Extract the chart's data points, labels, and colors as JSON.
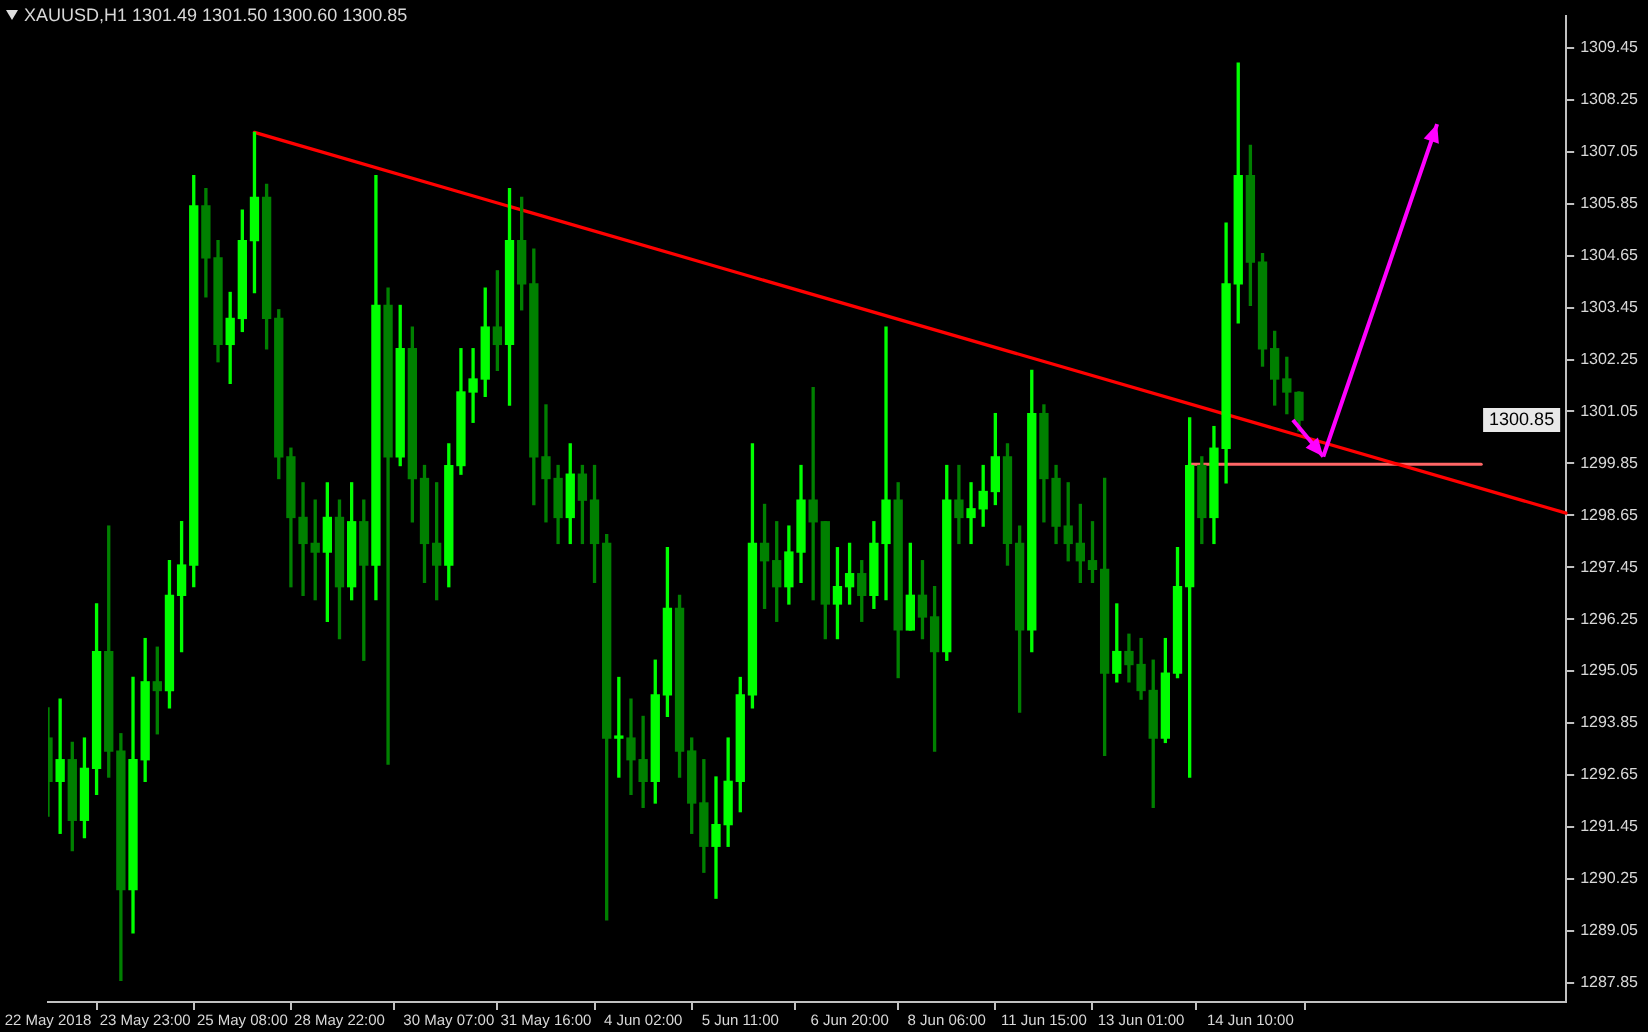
{
  "chart_data": {
    "type": "candlestick",
    "title": "XAUUSD,H1 1301.49 1301.50 1300.60 1300.85",
    "categories": [
      "22 May 2018",
      null,
      null,
      null,
      null,
      null,
      null,
      null,
      "23 May 23:00",
      null,
      null,
      null,
      null,
      null,
      null,
      null,
      "25 May 08:00",
      null,
      null,
      null,
      null,
      null,
      null,
      null,
      "28 May 22:00",
      null,
      null,
      null,
      null,
      null,
      null,
      null,
      null,
      "30 May 07:00",
      null,
      null,
      null,
      null,
      null,
      null,
      null,
      "31 May 16:00",
      null,
      null,
      null,
      null,
      null,
      null,
      null,
      "4 Jun 02:00",
      null,
      null,
      null,
      null,
      null,
      null,
      null,
      "5 Jun 11:00",
      null,
      null,
      null,
      null,
      null,
      null,
      null,
      null,
      "6 Jun 20:00",
      null,
      null,
      null,
      null,
      null,
      null,
      null,
      "8 Jun 06:00",
      null,
      null,
      null,
      null,
      null,
      null,
      null,
      "11 Jun 15:00",
      null,
      null,
      null,
      null,
      null,
      null,
      null,
      "13 Jun 01:00",
      null,
      null,
      null,
      null,
      null,
      null,
      null,
      null,
      "14 Jun 10:00",
      null,
      null,
      null,
      null,
      null,
      null,
      null,
      null,
      null,
      null,
      null,
      null,
      null,
      null,
      null,
      null,
      null,
      null,
      null,
      null,
      null,
      null,
      null,
      null,
      null,
      null
    ],
    "ylim": [
      1287.4,
      1310.2
    ],
    "yticks": [
      1309.45,
      1308.25,
      1307.05,
      1305.85,
      1304.65,
      1303.45,
      1302.25,
      1301.05,
      1299.85,
      1298.65,
      1297.45,
      1296.25,
      1295.05,
      1293.85,
      1292.65,
      1291.45,
      1290.25,
      1289.05,
      1287.85
    ],
    "annotations": [
      {
        "text": "1300.85",
        "y": 1300.85
      }
    ],
    "series": [
      {
        "color": "#00ff00",
        "colors": [
          "#008000",
          "#00ff00",
          "#008000",
          "#00ff00",
          "#00ff00",
          "#008000",
          "#008000",
          "#00ff00",
          "#00ff00",
          "#008000",
          "#00ff00",
          "#00ff00",
          "#00ff00",
          "#008000",
          "#008000",
          "#00ff00",
          "#00ff00",
          "#00ff00",
          "#008000",
          "#008000",
          "#008000",
          "#008000",
          "#008000",
          "#00ff00",
          "#008000",
          "#00ff00",
          "#008000",
          "#00ff00",
          "#008000",
          "#00ff00",
          "#008000",
          "#008000",
          "#008000",
          "#00ff00",
          "#00ff00",
          "#00ff00",
          "#00ff00",
          "#008000",
          "#00ff00",
          "#008000",
          "#008000",
          "#008000",
          "#008000",
          "#00ff00",
          "#008000",
          "#008000",
          "#008000",
          "#00ff00",
          "#008000",
          "#008000",
          "#00ff00",
          "#00ff00",
          "#008000",
          "#008000",
          "#008000",
          "#00ff00",
          "#00ff00",
          "#00ff00",
          "#00ff00",
          "#008000",
          "#008000",
          "#00ff00",
          "#00ff00",
          "#008000",
          "#008000",
          "#00ff00",
          "#00ff00",
          "#008000",
          "#00ff00",
          "#00ff00",
          "#008000",
          "#00ff00",
          "#008000",
          "#008000",
          "#00ff00",
          "#008000",
          "#00ff00",
          "#00ff00",
          "#00ff00",
          "#008000",
          "#008000",
          "#00ff00",
          "#008000",
          "#008000",
          "#008000",
          "#008000",
          "#008000",
          "#008000",
          "#00ff00",
          "#008000",
          "#008000",
          "#008000",
          "#00ff00",
          "#00ff00",
          "#00ff00",
          "#008000",
          "#00ff00",
          "#00ff00",
          "#00ff00",
          "#008000",
          "#008000",
          "#008000",
          "#008000",
          "#008000",
          null,
          null,
          null,
          null,
          null,
          null,
          null,
          null,
          null,
          null,
          null,
          null,
          null,
          null,
          null,
          null,
          null,
          null,
          null,
          null,
          null,
          null
        ],
        "ohlc": [
          [
            1293.5,
            1294.2,
            1291.7,
            1292.5
          ],
          [
            1292.5,
            1294.4,
            1291.3,
            1293.0
          ],
          [
            1293.0,
            1293.4,
            1290.9,
            1291.6
          ],
          [
            1291.6,
            1293.5,
            1291.2,
            1292.8
          ],
          [
            1292.8,
            1296.6,
            1292.2,
            1295.5
          ],
          [
            1295.5,
            1298.4,
            1292.6,
            1293.2
          ],
          [
            1293.2,
            1293.6,
            1287.9,
            1290.0
          ],
          [
            1290.0,
            1294.9,
            1289.0,
            1293.0
          ],
          [
            1293.0,
            1295.8,
            1292.5,
            1294.8
          ],
          [
            1294.8,
            1295.6,
            1293.6,
            1294.6
          ],
          [
            1294.6,
            1297.6,
            1294.2,
            1296.8
          ],
          [
            1296.8,
            1298.5,
            1295.5,
            1297.5
          ],
          [
            1297.5,
            1306.5,
            1297.0,
            1305.8
          ],
          [
            1305.8,
            1306.2,
            1303.7,
            1304.6
          ],
          [
            1304.6,
            1305.0,
            1302.2,
            1302.6
          ],
          [
            1302.6,
            1303.8,
            1301.7,
            1303.2
          ],
          [
            1303.2,
            1305.7,
            1302.9,
            1305.0
          ],
          [
            1305.0,
            1307.5,
            1303.8,
            1306.0
          ],
          [
            1306.0,
            1306.3,
            1302.5,
            1303.2
          ],
          [
            1303.2,
            1303.4,
            1299.5,
            1300.0
          ],
          [
            1300.0,
            1300.2,
            1297.0,
            1298.6
          ],
          [
            1298.6,
            1299.4,
            1296.8,
            1298.0
          ],
          [
            1298.0,
            1299.0,
            1296.7,
            1297.8
          ],
          [
            1297.8,
            1299.4,
            1296.2,
            1298.6
          ],
          [
            1298.6,
            1299.0,
            1295.8,
            1297.0
          ],
          [
            1297.0,
            1299.4,
            1296.7,
            1298.5
          ],
          [
            1298.5,
            1299.0,
            1295.3,
            1297.5
          ],
          [
            1297.5,
            1306.5,
            1296.7,
            1303.5
          ],
          [
            1303.5,
            1303.9,
            1292.9,
            1300.0
          ],
          [
            1300.0,
            1303.5,
            1299.8,
            1302.5
          ],
          [
            1302.5,
            1303.0,
            1298.5,
            1299.5
          ],
          [
            1299.5,
            1299.8,
            1297.1,
            1298.0
          ],
          [
            1298.0,
            1299.4,
            1296.7,
            1297.5
          ],
          [
            1297.5,
            1300.3,
            1297.0,
            1299.8
          ],
          [
            1299.8,
            1302.5,
            1299.6,
            1301.5
          ],
          [
            1301.5,
            1302.5,
            1300.8,
            1301.8
          ],
          [
            1301.8,
            1303.9,
            1301.4,
            1303.0
          ],
          [
            1303.0,
            1304.3,
            1302.0,
            1302.6
          ],
          [
            1302.6,
            1306.2,
            1301.2,
            1305.0
          ],
          [
            1305.0,
            1306.0,
            1303.4,
            1304.0
          ],
          [
            1304.0,
            1304.8,
            1298.9,
            1300.0
          ],
          [
            1300.0,
            1301.2,
            1298.5,
            1299.5
          ],
          [
            1299.5,
            1299.8,
            1298.0,
            1298.6
          ],
          [
            1298.6,
            1300.3,
            1298.0,
            1299.6
          ],
          [
            1299.6,
            1299.8,
            1298.0,
            1299.0
          ],
          [
            1299.0,
            1299.8,
            1297.1,
            1298.0
          ],
          [
            1298.0,
            1298.2,
            1289.3,
            1293.5
          ],
          [
            1293.5,
            1294.9,
            1292.6,
            1293.5
          ],
          [
            1293.5,
            1294.4,
            1292.2,
            1293.0
          ],
          [
            1293.0,
            1294.0,
            1291.9,
            1292.5
          ],
          [
            1292.5,
            1295.3,
            1292.0,
            1294.5
          ],
          [
            1294.5,
            1297.9,
            1294.0,
            1296.5
          ],
          [
            1296.5,
            1296.8,
            1292.6,
            1293.2
          ],
          [
            1293.2,
            1293.5,
            1291.3,
            1292.0
          ],
          [
            1292.0,
            1293.0,
            1290.4,
            1291.0
          ],
          [
            1291.0,
            1292.6,
            1289.8,
            1291.5
          ],
          [
            1291.5,
            1293.5,
            1291.0,
            1292.5
          ],
          [
            1292.5,
            1294.9,
            1291.8,
            1294.5
          ],
          [
            1294.5,
            1300.3,
            1294.2,
            1298.0
          ],
          [
            1298.0,
            1298.9,
            1296.5,
            1297.6
          ],
          [
            1297.6,
            1298.5,
            1296.2,
            1297.0
          ],
          [
            1297.0,
            1298.4,
            1296.6,
            1297.8
          ],
          [
            1297.8,
            1299.8,
            1297.1,
            1299.0
          ],
          [
            1299.0,
            1301.6,
            1296.7,
            1298.5
          ],
          [
            1298.5,
            1298.5,
            1295.8,
            1296.6
          ],
          [
            1296.6,
            1297.9,
            1295.8,
            1297.0
          ],
          [
            1297.0,
            1298.0,
            1296.6,
            1297.3
          ],
          [
            1297.3,
            1297.6,
            1296.2,
            1296.8
          ],
          [
            1296.8,
            1298.5,
            1296.5,
            1298.0
          ],
          [
            1298.0,
            1303.0,
            1296.7,
            1299.0
          ],
          [
            1299.0,
            1299.4,
            1294.9,
            1296.0
          ],
          [
            1296.0,
            1298.0,
            1296.0,
            1296.8
          ],
          [
            1296.8,
            1297.6,
            1295.8,
            1296.3
          ],
          [
            1296.3,
            1297.0,
            1293.2,
            1295.5
          ],
          [
            1295.5,
            1299.8,
            1295.3,
            1299.0
          ],
          [
            1299.0,
            1299.8,
            1298.0,
            1298.6
          ],
          [
            1298.6,
            1299.4,
            1298.0,
            1298.8
          ],
          [
            1298.8,
            1299.8,
            1298.4,
            1299.2
          ],
          [
            1299.2,
            1301.0,
            1298.9,
            1300.0
          ],
          [
            1300.0,
            1300.3,
            1297.5,
            1298.0
          ],
          [
            1298.0,
            1298.4,
            1294.1,
            1296.0
          ],
          [
            1296.0,
            1302.0,
            1295.5,
            1301.0
          ],
          [
            1301.0,
            1301.2,
            1298.5,
            1299.5
          ],
          [
            1299.5,
            1299.8,
            1298.0,
            1298.4
          ],
          [
            1298.4,
            1299.4,
            1297.6,
            1298.0
          ],
          [
            1298.0,
            1298.9,
            1297.1,
            1297.6
          ],
          [
            1297.6,
            1298.5,
            1297.1,
            1297.4
          ],
          [
            1297.4,
            1299.5,
            1293.1,
            1295.0
          ],
          [
            1295.0,
            1296.6,
            1294.8,
            1295.5
          ],
          [
            1295.5,
            1295.9,
            1294.8,
            1295.2
          ],
          [
            1295.2,
            1295.8,
            1294.4,
            1294.6
          ],
          [
            1294.6,
            1295.3,
            1291.9,
            1293.5
          ],
          [
            1293.5,
            1295.8,
            1293.4,
            1295.0
          ],
          [
            1295.0,
            1297.9,
            1294.9,
            1297.0
          ],
          [
            1297.0,
            1300.9,
            1292.6,
            1299.8
          ],
          [
            1299.8,
            1300.0,
            1298.0,
            1298.6
          ],
          [
            1298.6,
            1300.7,
            1298.0,
            1300.2
          ],
          [
            1300.2,
            1305.4,
            1299.4,
            1304.0
          ],
          [
            1304.0,
            1309.1,
            1303.1,
            1306.5
          ],
          [
            1306.5,
            1307.2,
            1303.5,
            1304.5
          ],
          [
            1304.5,
            1304.7,
            1302.1,
            1302.5
          ],
          [
            1302.5,
            1302.9,
            1301.2,
            1301.8
          ],
          [
            1301.8,
            1302.3,
            1301.0,
            1301.5
          ],
          [
            1301.49,
            1301.5,
            1300.6,
            1300.85
          ],
          null,
          null,
          null,
          null,
          null,
          null,
          null,
          null,
          null,
          null,
          null,
          null,
          null,
          null,
          null,
          null,
          null,
          null,
          null,
          null,
          null,
          null
        ]
      },
      {
        "type": "line",
        "color": "#ff0000",
        "values": [
          null,
          null,
          null,
          null,
          null,
          null,
          null,
          null,
          null,
          null,
          null,
          null,
          null,
          null,
          null,
          null,
          null,
          1307.5,
          null,
          null,
          null,
          null,
          null,
          null,
          null,
          null,
          null,
          null,
          null,
          null,
          null,
          null,
          null,
          null,
          null,
          null,
          null,
          null,
          null,
          null,
          null,
          null,
          null,
          null,
          null,
          null,
          null,
          null,
          null,
          null,
          null,
          null,
          null,
          null,
          null,
          null,
          null,
          null,
          null,
          null,
          null,
          null,
          null,
          null,
          null,
          null,
          null,
          null,
          null,
          null,
          null,
          null,
          null,
          null,
          null,
          null,
          null,
          null,
          null,
          null,
          null,
          null,
          null,
          null,
          null,
          null,
          null,
          null,
          null,
          null,
          null,
          null,
          null,
          null,
          null,
          null,
          null,
          null,
          null,
          null,
          null,
          null,
          null,
          null,
          null,
          null,
          null,
          null,
          null,
          null,
          null,
          null,
          null,
          null,
          null,
          null,
          null,
          null,
          null,
          null,
          null,
          null,
          null,
          null,
          null,
          1298.7
        ]
      },
      {
        "type": "line",
        "color": "#ff6666",
        "values": [
          null,
          null,
          null,
          null,
          null,
          null,
          null,
          null,
          null,
          null,
          null,
          null,
          null,
          null,
          null,
          null,
          null,
          null,
          null,
          null,
          null,
          null,
          null,
          null,
          null,
          null,
          null,
          null,
          null,
          null,
          null,
          null,
          null,
          null,
          null,
          null,
          null,
          null,
          null,
          null,
          null,
          null,
          null,
          null,
          null,
          null,
          null,
          null,
          null,
          null,
          null,
          null,
          null,
          null,
          null,
          null,
          null,
          null,
          null,
          null,
          null,
          null,
          null,
          null,
          null,
          null,
          null,
          null,
          null,
          null,
          null,
          null,
          null,
          null,
          null,
          null,
          null,
          null,
          null,
          null,
          null,
          null,
          null,
          null,
          null,
          null,
          null,
          null,
          null,
          null,
          null,
          null,
          null,
          null,
          1299.83,
          null,
          null,
          null,
          null,
          null,
          null,
          null,
          null,
          null,
          null,
          null,
          null,
          null,
          null,
          null,
          null,
          null,
          null,
          null,
          null,
          null,
          null,
          null,
          1299.83,
          null,
          null,
          null,
          null,
          null,
          null,
          null
        ]
      }
    ]
  }
}
